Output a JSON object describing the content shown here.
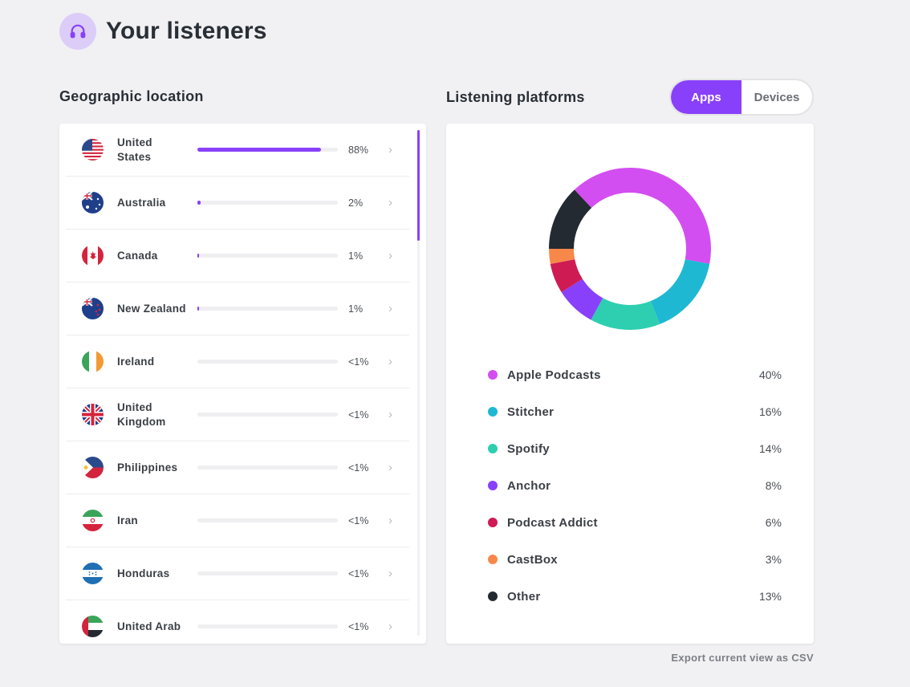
{
  "page": {
    "title": "Your listeners"
  },
  "geo": {
    "title": "Geographic location",
    "rows": [
      {
        "name": "United States",
        "pct": "88%",
        "value": 0.88,
        "flag": "us-flag-icon"
      },
      {
        "name": "Australia",
        "pct": "2%",
        "value": 0.02,
        "flag": "au-flag-icon"
      },
      {
        "name": "Canada",
        "pct": "1%",
        "value": 0.01,
        "flag": "ca-flag-icon"
      },
      {
        "name": "New Zealand",
        "pct": "1%",
        "value": 0.01,
        "flag": "nz-flag-icon"
      },
      {
        "name": "Ireland",
        "pct": "<1%",
        "value": 0,
        "flag": "ie-flag-icon"
      },
      {
        "name": "United Kingdom",
        "pct": "<1%",
        "value": 0,
        "flag": "gb-flag-icon"
      },
      {
        "name": "Philippines",
        "pct": "<1%",
        "value": 0,
        "flag": "ph-flag-icon"
      },
      {
        "name": "Iran",
        "pct": "<1%",
        "value": 0,
        "flag": "ir-flag-icon"
      },
      {
        "name": "Honduras",
        "pct": "<1%",
        "value": 0,
        "flag": "hn-flag-icon"
      },
      {
        "name": "United Arab",
        "pct": "<1%",
        "value": 0,
        "flag": "ae-flag-icon"
      }
    ]
  },
  "platforms": {
    "title": "Listening platforms",
    "toggle": {
      "apps": "Apps",
      "devices": "Devices",
      "selected": "Apps"
    }
  },
  "chart_data": {
    "type": "pie",
    "categories": [
      "Apple Podcasts",
      "Stitcher",
      "Spotify",
      "Anchor",
      "Podcast Addict",
      "CastBox",
      "Other"
    ],
    "values": [
      40,
      16,
      14,
      8,
      6,
      3,
      13
    ],
    "labels": [
      "40%",
      "16%",
      "14%",
      "8%",
      "6%",
      "3%",
      "13%"
    ],
    "colors": [
      "#d34ef0",
      "#1fb8d2",
      "#2dcfb0",
      "#8940fa",
      "#cf1b53",
      "#f8884a",
      "#232a31"
    ]
  },
  "export_label": "Export current view as CSV",
  "colors": {
    "accent": "#8940fa"
  }
}
